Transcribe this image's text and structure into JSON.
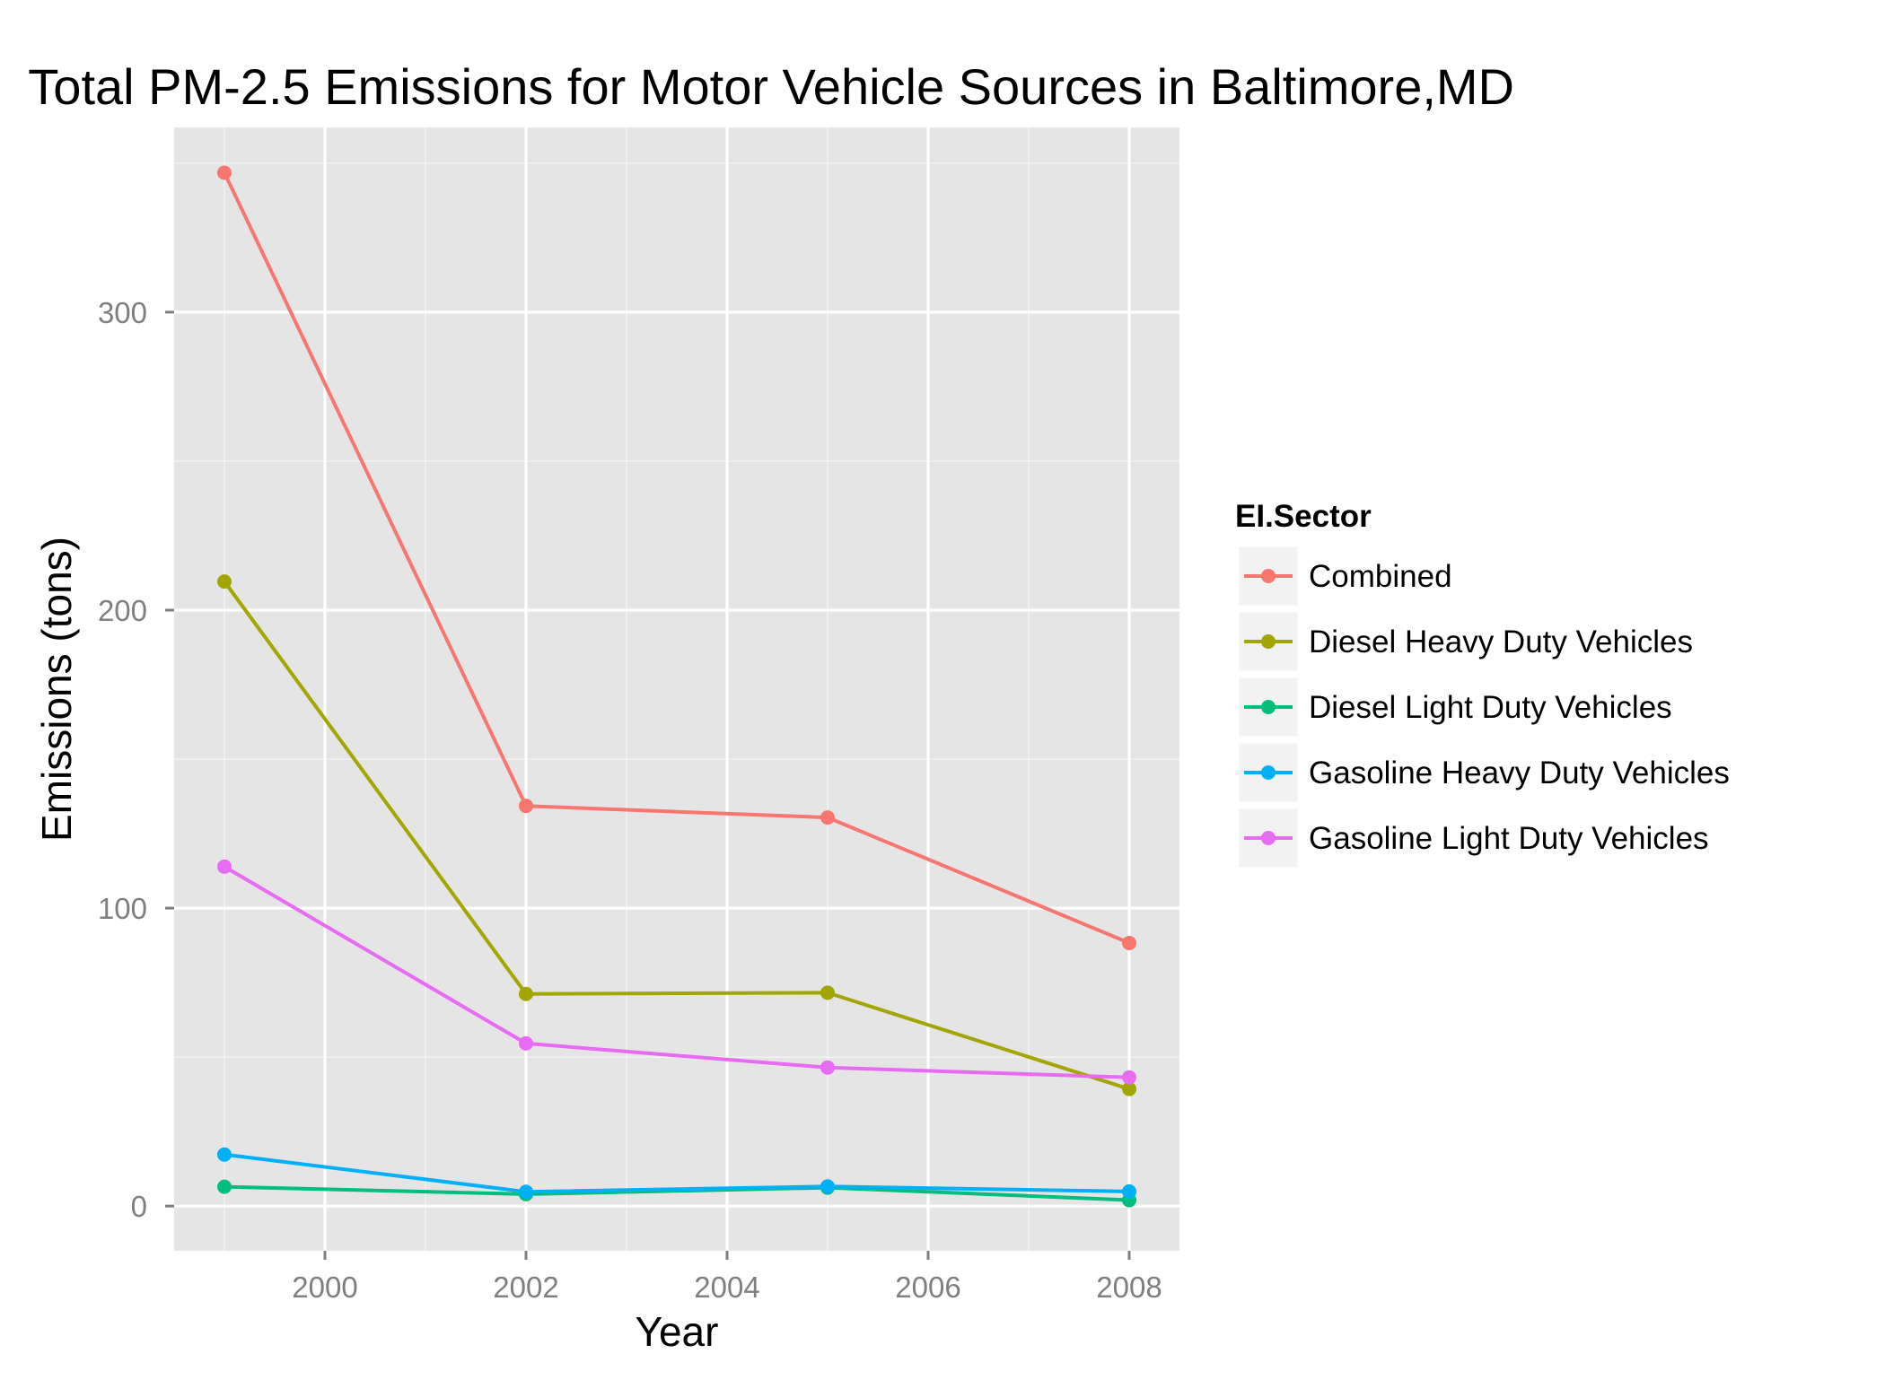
{
  "chart_data": {
    "type": "line",
    "title": "Total PM-2.5 Emissions for Motor Vehicle Sources in Baltimore,MD",
    "xlabel": "Year",
    "ylabel": "Emissions (tons)",
    "xlim": [
      1998.5,
      2008.5
    ],
    "ylim": [
      -15,
      362
    ],
    "x_ticks": [
      2000,
      2002,
      2004,
      2006,
      2008
    ],
    "y_ticks": [
      0,
      100,
      200,
      300
    ],
    "x_minor": [
      1999,
      2001,
      2003,
      2005,
      2007
    ],
    "y_minor": [
      50,
      150,
      250,
      350
    ],
    "grid": true,
    "legend": {
      "title": "EI.Sector",
      "position": "right"
    },
    "x": [
      1999,
      2002,
      2005,
      2008
    ],
    "series": [
      {
        "name": "Combined",
        "color": "#f8766d",
        "values": [
          346.8,
          134.3,
          130.4,
          88.3
        ]
      },
      {
        "name": "Diesel Heavy Duty Vehicles",
        "color": "#a3a500",
        "values": [
          209.6,
          71.2,
          71.6,
          39.3
        ]
      },
      {
        "name": "Diesel Light Duty Vehicles",
        "color": "#00bf7d",
        "values": [
          6.5,
          4.0,
          6.2,
          2.0
        ]
      },
      {
        "name": "Gasoline Heavy Duty Vehicles",
        "color": "#00b0f6",
        "values": [
          17.3,
          4.8,
          6.6,
          4.9
        ]
      },
      {
        "name": "Gasoline Light Duty Vehicles",
        "color": "#e76bf3",
        "values": [
          113.9,
          54.6,
          46.5,
          43.2
        ]
      }
    ]
  }
}
